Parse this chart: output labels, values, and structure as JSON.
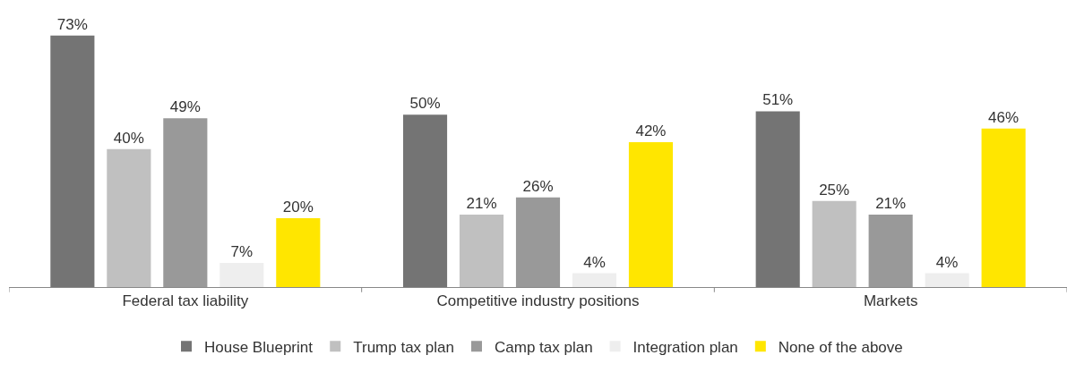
{
  "chart_data": {
    "type": "bar",
    "categories": [
      "Federal tax liability",
      "Competitive industry positions",
      "Markets"
    ],
    "series": [
      {
        "name": "House Blueprint",
        "color": "#747474",
        "values": [
          73,
          50,
          51
        ],
        "value_labels": [
          "73%",
          "50%",
          "51%"
        ]
      },
      {
        "name": "Trump tax plan",
        "color": "#c0c0c0",
        "values": [
          40,
          21,
          25
        ],
        "value_labels": [
          "40%",
          "21%",
          "25%"
        ]
      },
      {
        "name": "Camp tax plan",
        "color": "#999999",
        "values": [
          49,
          26,
          21
        ],
        "value_labels": [
          "49%",
          "26%",
          "21%"
        ]
      },
      {
        "name": "Integration plan",
        "color": "#eeeeee",
        "values": [
          7,
          4,
          4
        ],
        "value_labels": [
          "7%",
          "4%",
          "4%"
        ]
      },
      {
        "name": "None of the above",
        "color": "#ffe600",
        "values": [
          20,
          42,
          46
        ],
        "value_labels": [
          "20%",
          "42%",
          "46%"
        ]
      }
    ],
    "legend": "bottom",
    "tick_labels": "x"
  }
}
